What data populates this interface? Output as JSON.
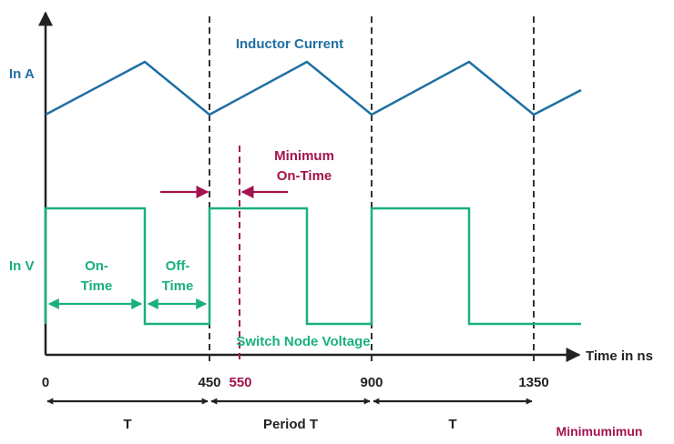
{
  "colors": {
    "current": "#1f6fa3",
    "voltage": "#19b07d",
    "accent": "#a3134d",
    "axis": "#222222",
    "dashed": "#333333"
  },
  "labels": {
    "current_axis": "In A",
    "voltage_axis": "In V",
    "current_title": "Inductor Current",
    "voltage_title": "Switch Node Voltage",
    "time_axis": "Time in ns",
    "min_on_time_line1": "Minimum",
    "min_on_time_line2": "On-Time",
    "on_time_line1": "On-",
    "on_time_line2": "Time",
    "off_time_line1": "Off-",
    "off_time_line2": "Time",
    "period_left": "T",
    "period_middle": "Period T",
    "period_right": "T",
    "watermark": "Minimumimun"
  },
  "ticks": [
    "0",
    "450",
    "550",
    "900",
    "1350"
  ],
  "icons": [
    "arrow-right-icon",
    "arrow-left-icon"
  ]
}
